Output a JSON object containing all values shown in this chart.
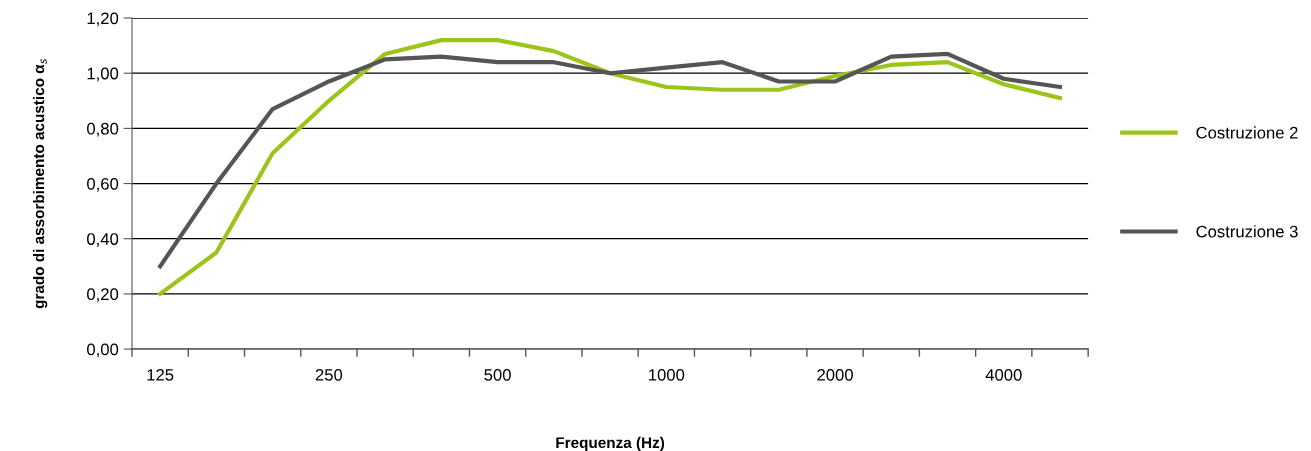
{
  "chart_data": {
    "type": "line",
    "xlabel": "Frequenza (Hz)",
    "ylabel": "grado di assorbimento acustico α$_{s}$",
    "categories": [
      "125",
      null,
      null,
      "250",
      null,
      null,
      "500",
      null,
      null,
      "1000",
      null,
      null,
      "2000",
      null,
      null,
      "4000",
      null
    ],
    "series": [
      {
        "name": "Costruzione 2",
        "color": "#9dc41a",
        "values": [
          0.2,
          0.35,
          0.71,
          0.9,
          1.07,
          1.12,
          1.12,
          1.08,
          1.0,
          0.95,
          0.94,
          0.94,
          0.99,
          1.03,
          1.04,
          0.96,
          0.91
        ]
      },
      {
        "name": "Costruzione 3",
        "color": "#555555",
        "values": [
          0.3,
          0.6,
          0.87,
          0.97,
          1.05,
          1.06,
          1.04,
          1.04,
          1.0,
          1.02,
          1.04,
          0.97,
          0.97,
          1.06,
          1.07,
          0.98,
          0.95
        ]
      }
    ],
    "ylim": [
      0,
      1.2
    ],
    "yticks": [
      {
        "value": 0,
        "label": "0,00"
      },
      {
        "value": 0.2,
        "label": "0,20"
      },
      {
        "value": 0.4,
        "label": "0,40"
      },
      {
        "value": 0.6,
        "label": "0,60"
      },
      {
        "value": 0.8,
        "label": "0,80"
      },
      {
        "value": 1.0,
        "label": "1,00"
      },
      {
        "value": 1.2,
        "label": "1,20"
      }
    ],
    "grid": "y",
    "legend": "right",
    "marker": "none",
    "line_style": "solid"
  }
}
